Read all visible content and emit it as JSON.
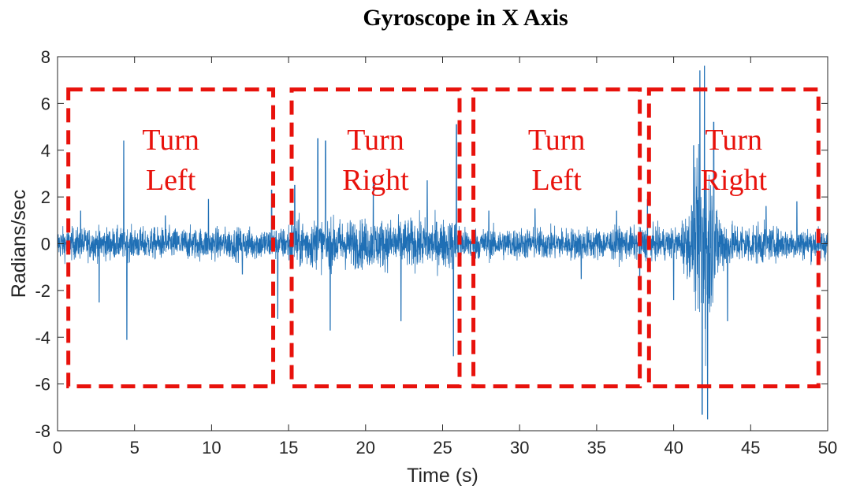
{
  "chart_data": {
    "type": "line",
    "title": "Gyroscope in X Axis",
    "xlabel": "Time (s)",
    "ylabel": "Radians/sec",
    "xlim": [
      0,
      50
    ],
    "ylim": [
      -8,
      8
    ],
    "xticks": [
      0,
      5,
      10,
      15,
      20,
      25,
      30,
      35,
      40,
      45,
      50
    ],
    "yticks": [
      8,
      6,
      4,
      2,
      0,
      -2,
      -4,
      -6,
      -8
    ],
    "grid": false,
    "line_color": "#1f6fb5",
    "series": [
      {
        "x": [
          0,
          1.5,
          2.7,
          4.3,
          4.5,
          7,
          9.8,
          12,
          13.9,
          14.3,
          15.4,
          16.9,
          17.4,
          17.7,
          20.5,
          22.3,
          24,
          25.7,
          25.9,
          26.1,
          28,
          31,
          34,
          36.3,
          37.8,
          38.3,
          40,
          41.3,
          41.7,
          41.85,
          42,
          42.2,
          42.6,
          43.5,
          46,
          48,
          50
        ],
        "y": [
          0,
          1.4,
          -2.5,
          4.4,
          -4.1,
          1.2,
          1.9,
          -1.3,
          2.3,
          -3.2,
          2.5,
          4.5,
          4.4,
          -3.7,
          2.8,
          -3.3,
          2.7,
          -4.8,
          5.1,
          0.2,
          1.4,
          1.5,
          -1.5,
          1.4,
          -1.6,
          1.9,
          -2.4,
          4.2,
          7.4,
          -7.3,
          7.6,
          -7.5,
          5.2,
          -3.3,
          1.6,
          1.8,
          0
        ]
      }
    ],
    "annotations": [
      {
        "label_top": "Turn",
        "label_bottom": "Left",
        "x_start": 0.7,
        "x_end": 14.0,
        "y_top": 6.6,
        "y_bottom": -6.1
      },
      {
        "label_top": "Turn",
        "label_bottom": "Right",
        "x_start": 15.2,
        "x_end": 26.1,
        "y_top": 6.6,
        "y_bottom": -6.1
      },
      {
        "label_top": "Turn",
        "label_bottom": "Left",
        "x_start": 27.0,
        "x_end": 37.8,
        "y_top": 6.6,
        "y_bottom": -6.1
      },
      {
        "label_top": "Turn",
        "label_bottom": "Right",
        "x_start": 38.4,
        "x_end": 49.4,
        "y_top": 6.6,
        "y_bottom": -6.1
      }
    ],
    "annotation_color": "#e8120c"
  }
}
